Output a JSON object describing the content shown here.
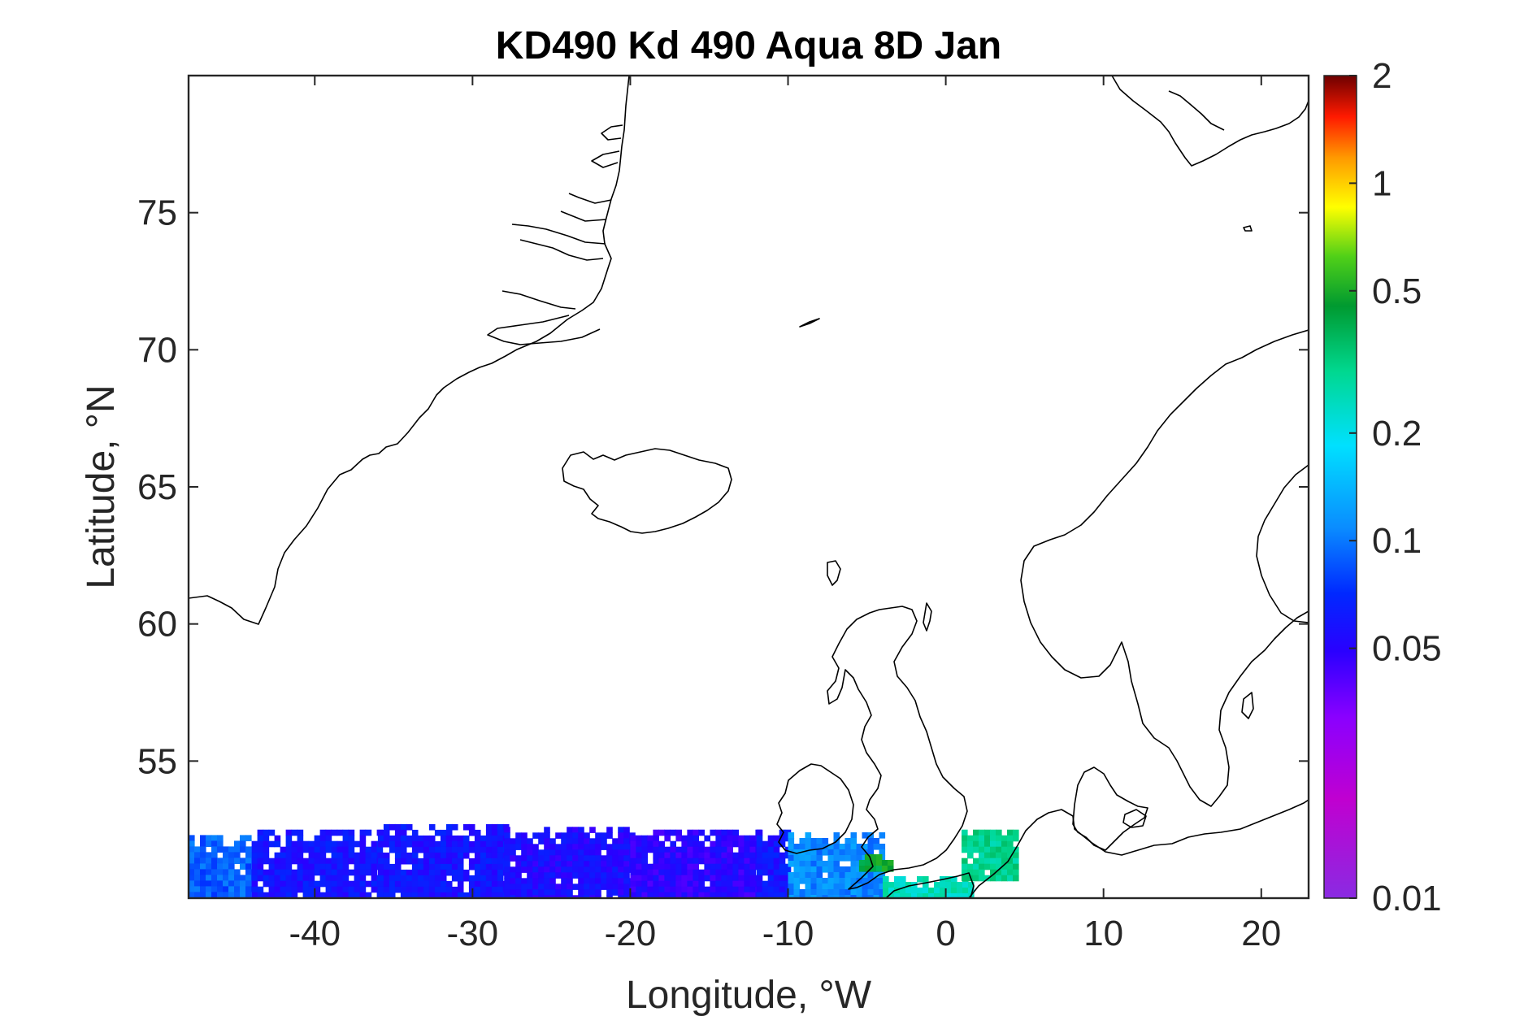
{
  "chart_data": {
    "type": "heatmap",
    "title": "KD490 Kd 490 Aqua 8D Jan",
    "xlabel": "Longitude, °W",
    "ylabel": "Latitude, °N",
    "xlim": [
      -48,
      23
    ],
    "ylim": [
      50,
      80
    ],
    "xticks": [
      -40,
      -30,
      -20,
      -10,
      0,
      10,
      20
    ],
    "yticks": [
      55,
      60,
      65,
      70,
      75
    ],
    "colorbar": {
      "scale": "log",
      "range": [
        0.01,
        2
      ],
      "ticks": [
        0.01,
        0.05,
        0.1,
        0.2,
        0.5,
        1,
        2
      ],
      "tick_labels": [
        "0.01",
        "0.05",
        "0.1",
        "0.2",
        "0.5",
        "1",
        "2"
      ],
      "colormap": "jet-like (violet → blue → cyan → green → yellow → red → dark red)"
    },
    "data_regions": [
      {
        "lon": [
          -48,
          -44
        ],
        "lat": [
          50,
          52.3
        ],
        "value": 0.09
      },
      {
        "lon": [
          -44,
          -36
        ],
        "lat": [
          50,
          52.5
        ],
        "value": 0.06
      },
      {
        "lon": [
          -36,
          -28
        ],
        "lat": [
          50,
          52.7
        ],
        "value": 0.06
      },
      {
        "lon": [
          -28,
          -20
        ],
        "lat": [
          50,
          52.6
        ],
        "value": 0.055
      },
      {
        "lon": [
          -20,
          -12
        ],
        "lat": [
          50,
          52.5
        ],
        "value": 0.05
      },
      {
        "lon": [
          -12,
          -10
        ],
        "lat": [
          50,
          52.5
        ],
        "value": 0.06
      },
      {
        "lon": [
          -10,
          -4
        ],
        "lat": [
          50,
          52.4
        ],
        "value": 0.11
      },
      {
        "lon": [
          -5.5,
          -3.5
        ],
        "lat": [
          51.1,
          51.6
        ],
        "value": 0.45
      },
      {
        "lon": [
          -4,
          1.5
        ],
        "lat": [
          50,
          50.8
        ],
        "value": 0.25
      },
      {
        "lon": [
          1,
          4.5
        ],
        "lat": [
          50.8,
          52.5
        ],
        "value": 0.3
      }
    ]
  },
  "colors": {
    "axis": "#262626",
    "coastline": "#000000",
    "background": "#ffffff"
  }
}
